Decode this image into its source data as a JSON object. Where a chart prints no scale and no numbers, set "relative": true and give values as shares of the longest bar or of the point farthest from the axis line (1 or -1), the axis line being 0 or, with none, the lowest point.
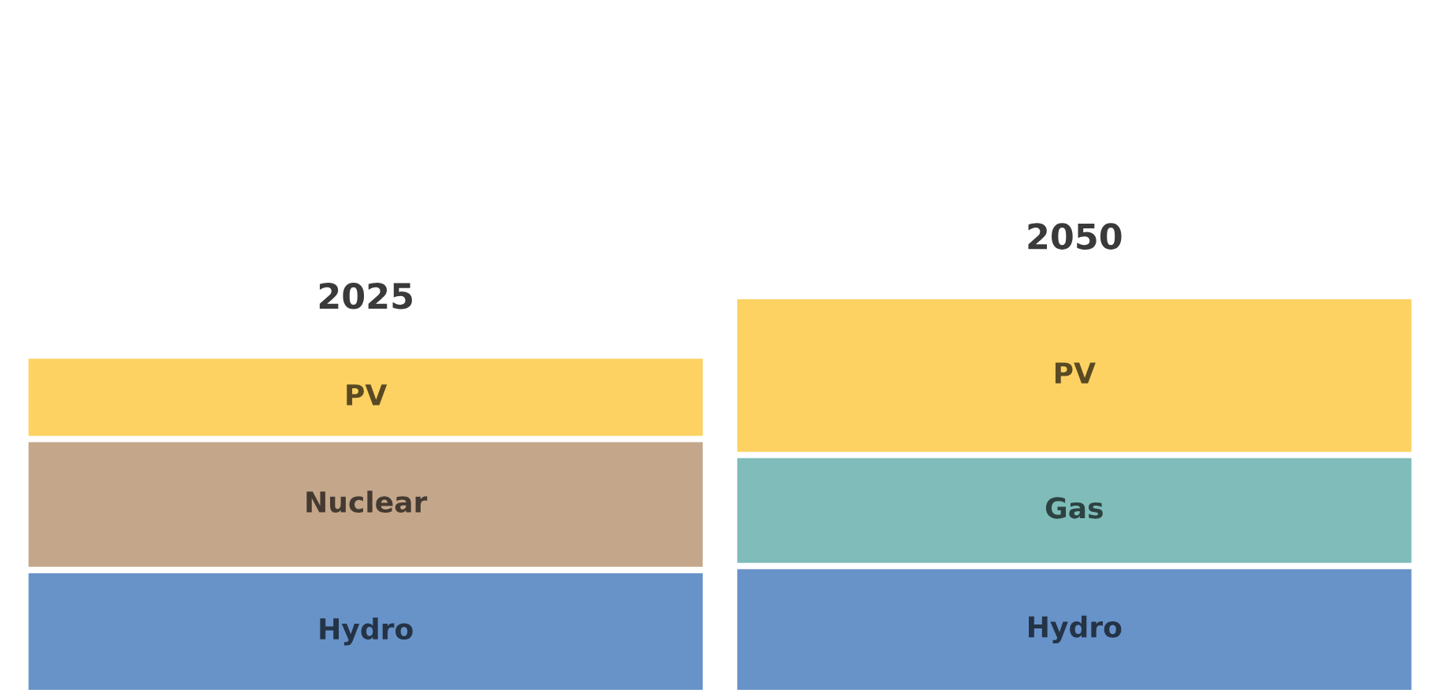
{
  "chart_data": {
    "type": "bar",
    "stacked": true,
    "relative": true,
    "data_labels": false,
    "categories": [
      "2025",
      "2050"
    ],
    "series": [
      {
        "name": "Hydro",
        "color": "#6893c9",
        "values": [
          0.31,
          0.32
        ]
      },
      {
        "name": "Nuclear",
        "color": "#c4a78b",
        "values": [
          0.33,
          null
        ]
      },
      {
        "name": "Gas",
        "color": "#7fbcba",
        "values": [
          null,
          0.28
        ]
      },
      {
        "name": "PV",
        "color": "#fdd263",
        "values": [
          0.21,
          0.4
        ]
      }
    ],
    "legend": false
  }
}
